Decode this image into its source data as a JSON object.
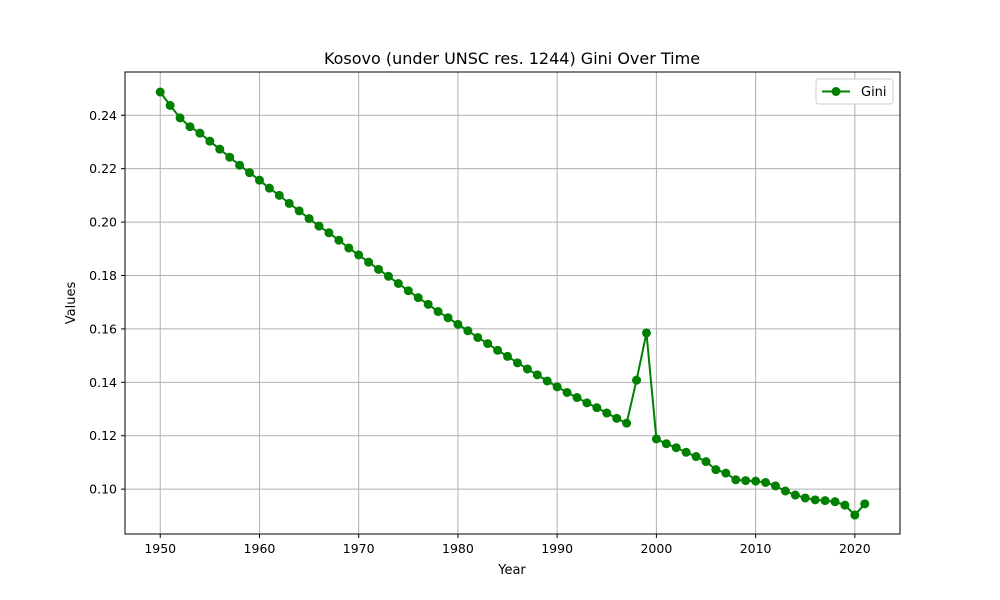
{
  "chart_data": {
    "type": "line",
    "title": "Kosovo (under UNSC res. 1244) Gini Over Time",
    "xlabel": "Year",
    "ylabel": "Values",
    "xlim": [
      1946.45,
      2024.55
    ],
    "ylim": [
      0.0832,
      0.2562
    ],
    "x_ticks": [
      1950,
      1960,
      1970,
      1980,
      1990,
      2000,
      2010,
      2020
    ],
    "y_ticks": [
      0.1,
      0.12,
      0.14,
      0.16,
      0.18,
      0.2,
      0.22,
      0.24
    ],
    "grid": true,
    "legend_position": "top-right",
    "color": "#008000",
    "series": [
      {
        "name": "Gini",
        "x": [
          1950,
          1951,
          1952,
          1953,
          1954,
          1955,
          1956,
          1957,
          1958,
          1959,
          1960,
          1961,
          1962,
          1963,
          1964,
          1965,
          1966,
          1967,
          1968,
          1969,
          1970,
          1971,
          1972,
          1973,
          1974,
          1975,
          1976,
          1977,
          1978,
          1979,
          1980,
          1981,
          1982,
          1983,
          1984,
          1985,
          1986,
          1987,
          1988,
          1989,
          1990,
          1991,
          1992,
          1993,
          1994,
          1995,
          1996,
          1997,
          1998,
          1999,
          2000,
          2001,
          2002,
          2003,
          2004,
          2005,
          2006,
          2007,
          2008,
          2009,
          2010,
          2011,
          2012,
          2013,
          2014,
          2015,
          2016,
          2017,
          2018,
          2019,
          2020,
          2021
        ],
        "values": [
          0.2487,
          0.2437,
          0.239,
          0.2357,
          0.2333,
          0.2303,
          0.2273,
          0.2243,
          0.2213,
          0.2185,
          0.2157,
          0.2127,
          0.21,
          0.207,
          0.2042,
          0.2013,
          0.1985,
          0.196,
          0.1932,
          0.1903,
          0.1877,
          0.185,
          0.1823,
          0.1797,
          0.177,
          0.1743,
          0.1717,
          0.1692,
          0.1665,
          0.1642,
          0.1617,
          0.1593,
          0.1568,
          0.1545,
          0.152,
          0.1497,
          0.1473,
          0.145,
          0.1428,
          0.1405,
          0.1383,
          0.1362,
          0.1343,
          0.1323,
          0.1305,
          0.1285,
          0.1265,
          0.1247,
          0.1408,
          0.1585,
          0.1188,
          0.117,
          0.1155,
          0.1138,
          0.1122,
          0.1103,
          0.1073,
          0.106,
          0.1035,
          0.1032,
          0.103,
          0.1025,
          0.1012,
          0.0993,
          0.0978,
          0.0967,
          0.096,
          0.0957,
          0.0953,
          0.094,
          0.0903,
          0.0945
        ]
      }
    ]
  }
}
